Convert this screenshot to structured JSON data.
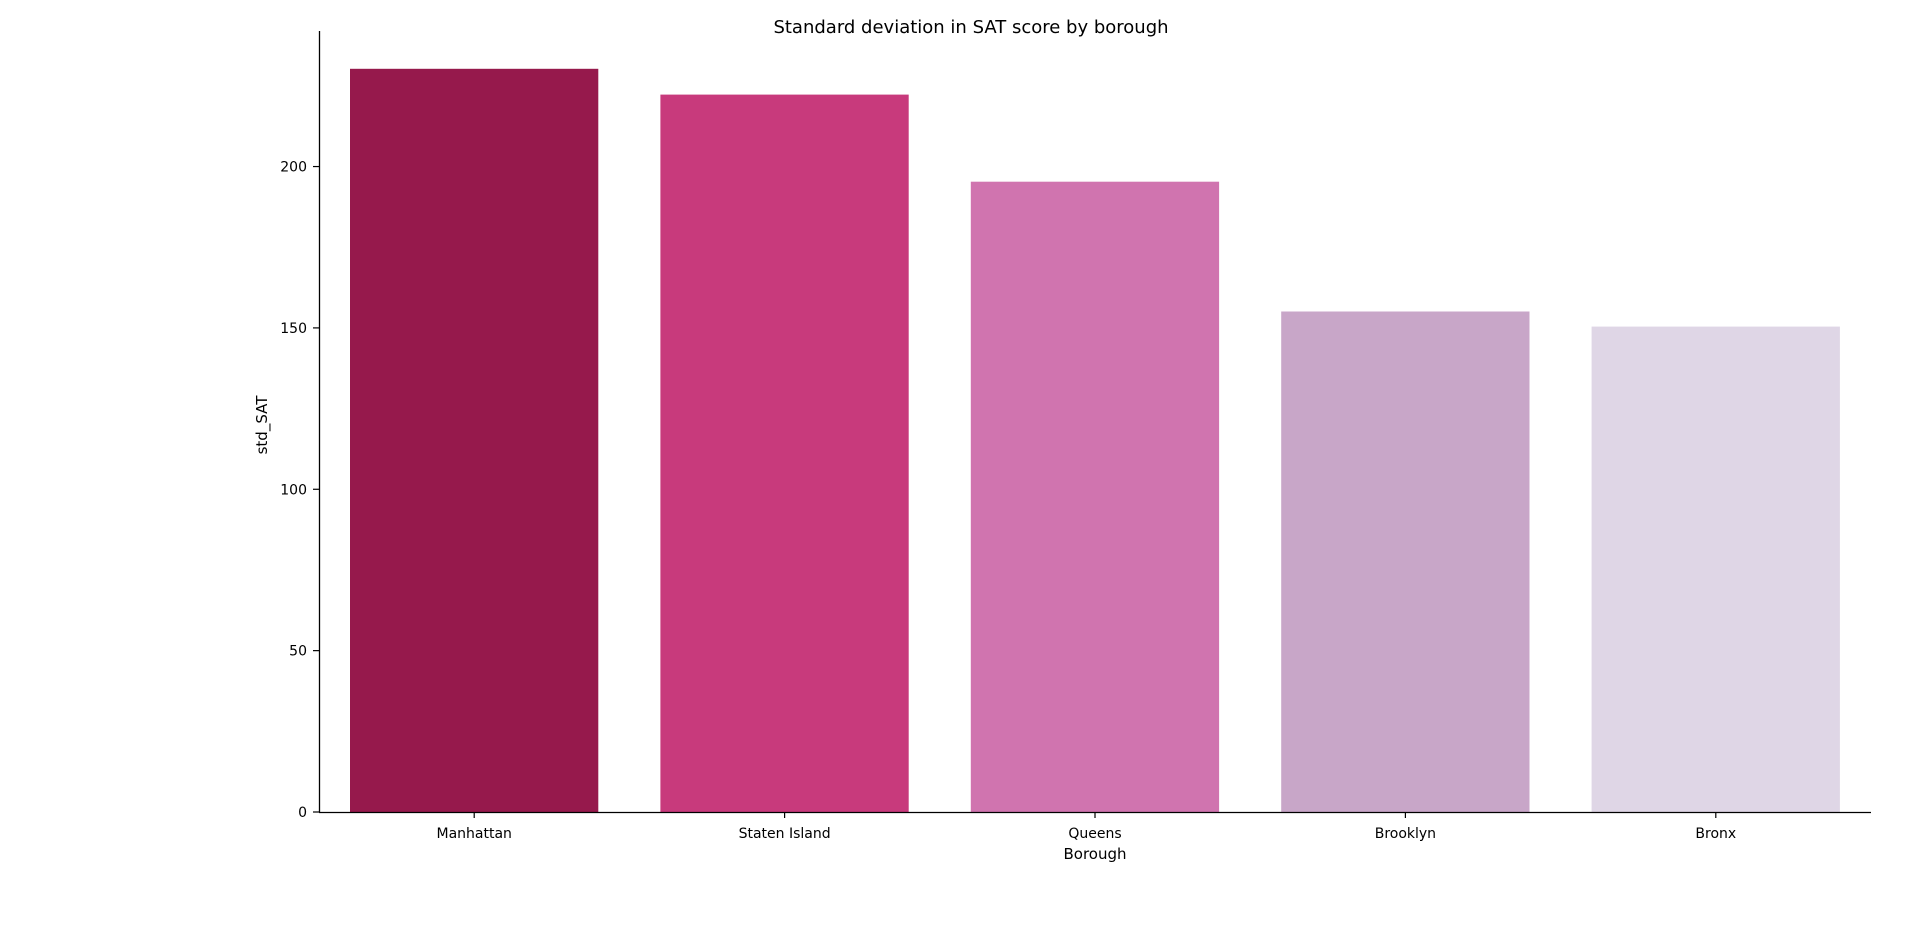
{
  "chart_data": {
    "type": "bar",
    "title": "Standard deviation in SAT score by borough",
    "xlabel": "Borough",
    "ylabel": "std_SAT",
    "categories": [
      "Manhattan",
      "Staten Island",
      "Queens",
      "Brooklyn",
      "Bronx"
    ],
    "values": [
      230.3,
      222.3,
      195.3,
      155.1,
      150.4
    ],
    "colors": [
      "#96194c",
      "#c83a7c",
      "#d074af",
      "#c8a6c8",
      "#dfd6e6"
    ],
    "ylim": [
      0,
      242
    ],
    "yticks": [
      0,
      50,
      100,
      150,
      200
    ],
    "grid": false,
    "legend": false
  }
}
